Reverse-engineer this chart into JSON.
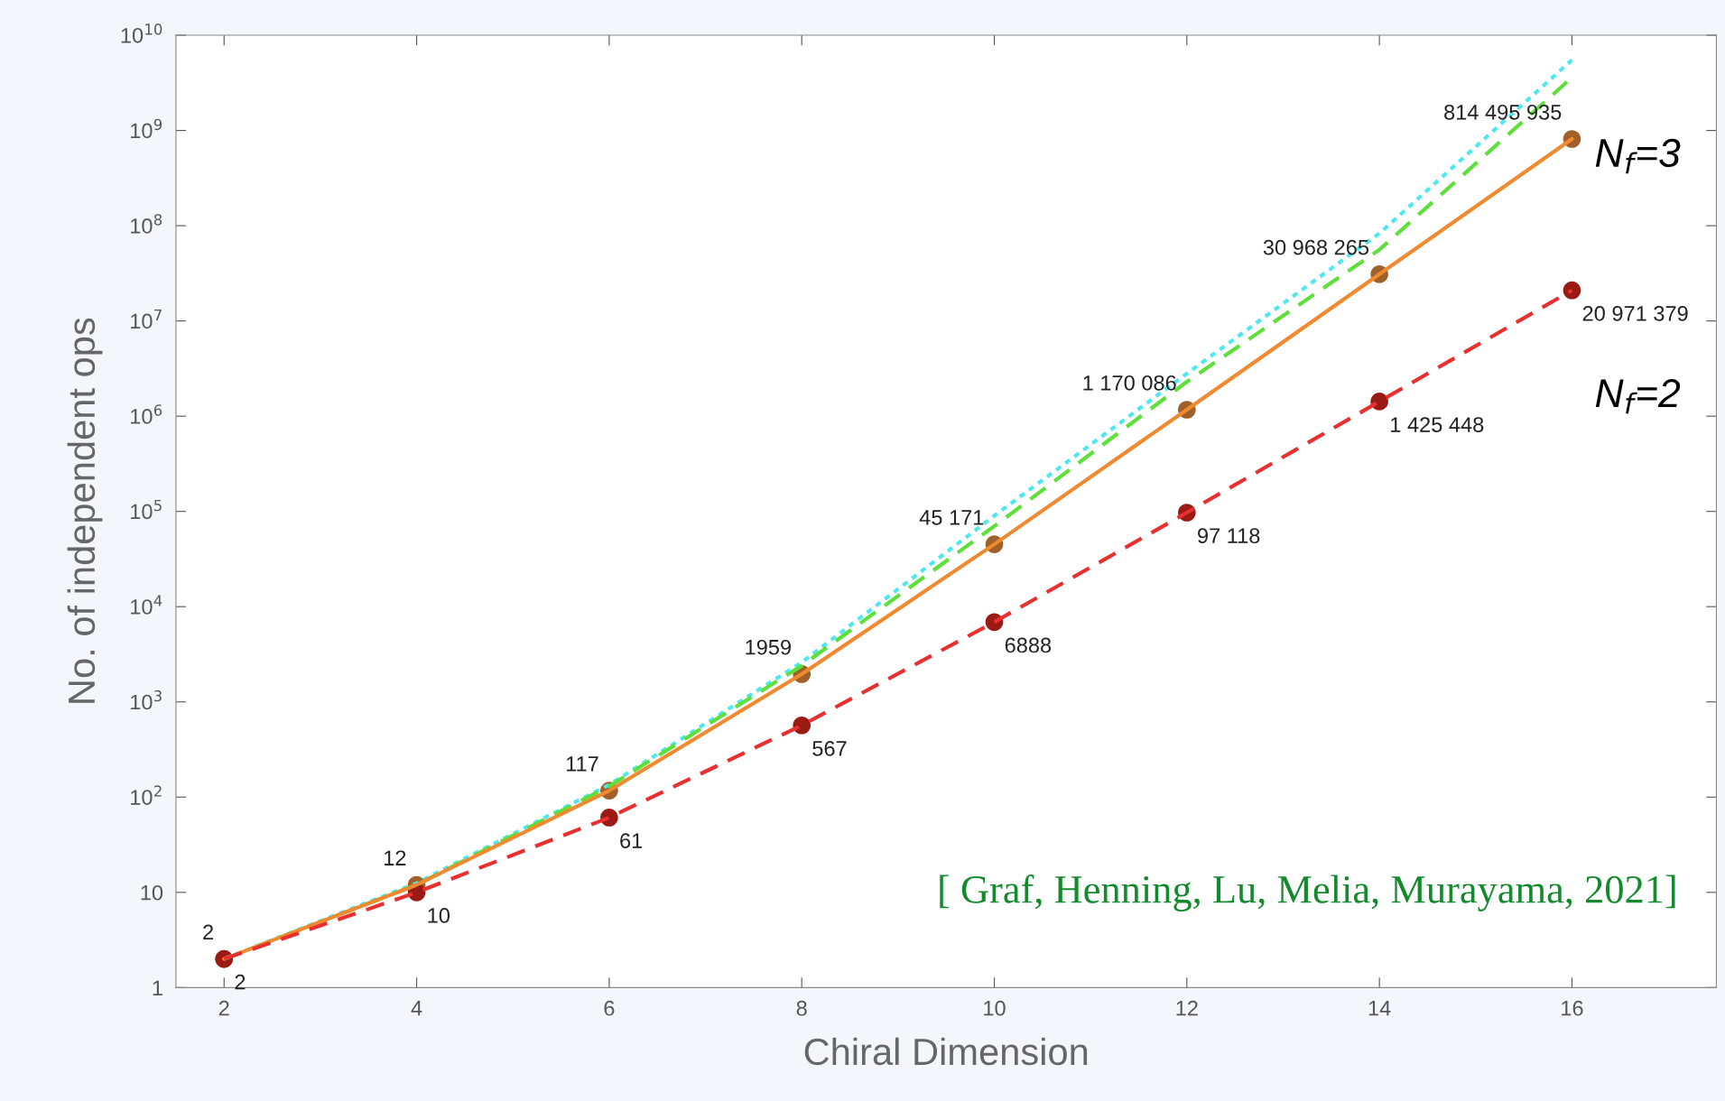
{
  "chart_data": {
    "type": "line",
    "xlabel": "Chiral Dimension",
    "ylabel": "No. of independent ops",
    "x": [
      2,
      4,
      6,
      8,
      10,
      12,
      14,
      16
    ],
    "series": [
      {
        "color": "#4de8f0",
        "line_style": "dotted",
        "marker": "none",
        "values": [
          2,
          12.5,
          135,
          2600,
          90000,
          2800000,
          83000000,
          5500000000
        ]
      },
      {
        "color": "#5ee03a",
        "line_style": "dashed",
        "marker": "none",
        "values": [
          2,
          12,
          130,
          2400,
          70000,
          2300000,
          56000000,
          3600000000
        ]
      },
      {
        "name": "N$_{f}$=3",
        "color": "#f08a30",
        "colors": [
          "#a0602a",
          "#a0602a",
          "#a0602a",
          "#a0602a",
          "#a0602a",
          "#a0602a",
          "#a0602a",
          "#a0602a"
        ],
        "line_style": "solid",
        "marker": "circle",
        "values": [
          2,
          12,
          117,
          1959,
          45171,
          1170086,
          30968265,
          814495935
        ],
        "value_labels": [
          "2",
          "12",
          "117",
          "1959",
          "45 171",
          "1 170 086",
          "30 968 265",
          "814 495 935"
        ]
      },
      {
        "name": "N$_{f}$=2",
        "color": "#e83030",
        "colors": [
          "#9b1a14",
          "#9b1a14",
          "#9b1a14",
          "#9b1a14",
          "#9b1a14",
          "#9b1a14",
          "#9b1a14",
          "#9b1a14"
        ],
        "line_style": "dashed",
        "marker": "circle",
        "values": [
          2,
          10,
          61,
          567,
          6888,
          97118,
          1425448,
          20971379
        ],
        "value_labels": [
          "2",
          "10",
          "61",
          "567",
          "6888",
          "97 118",
          "1 425 448",
          "20 971 379"
        ]
      }
    ],
    "log": "y",
    "xlim": [
      1.5,
      17.5
    ],
    "xticks": [
      2,
      4,
      6,
      8,
      10,
      12,
      14,
      16
    ],
    "ylim": [
      1,
      10000000000
    ],
    "yticks": [
      1,
      10,
      {
        "value": 100,
        "label": "10$^{2}$"
      },
      {
        "value": 1000,
        "label": "10$^{3}$"
      },
      {
        "value": 10000,
        "label": "10$^{4}$"
      },
      {
        "value": 100000,
        "label": "10$^{5}$"
      },
      {
        "value": 1000000,
        "label": "10$^{6}$"
      },
      {
        "value": 10000000,
        "label": "10$^{7}$"
      },
      {
        "value": 100000000,
        "label": "10$^{8}$"
      },
      {
        "value": 1000000000,
        "label": "10$^{9}$"
      },
      {
        "value": 10000000000,
        "label": "10$^{10}$"
      }
    ],
    "grid": false,
    "legend": false,
    "annotations": [
      "[ Graf, Henning, Lu, Melia, Murayama, 2021]"
    ]
  }
}
